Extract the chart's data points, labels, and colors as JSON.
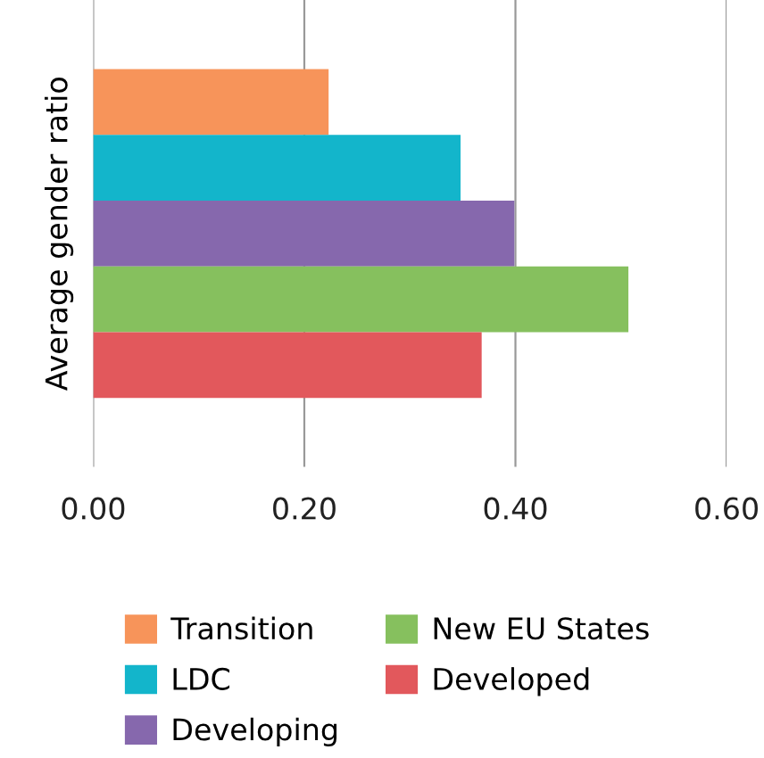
{
  "chart_data": {
    "type": "bar",
    "orientation": "horizontal",
    "ylabel": "Average gender ratio",
    "categories": [
      null
    ],
    "series": [
      {
        "name": "Transition",
        "color": "#f7945a",
        "values": [
          0.223
        ]
      },
      {
        "name": "LDC",
        "color": "#13b5cb",
        "values": [
          0.348
        ]
      },
      {
        "name": "Developing",
        "color": "#8668ad",
        "values": [
          0.399
        ]
      },
      {
        "name": "New EU States",
        "color": "#86c05e",
        "values": [
          0.507
        ]
      },
      {
        "name": "Developed",
        "color": "#e2585c",
        "values": [
          0.368
        ]
      }
    ],
    "xlim": [
      0,
      0.6
    ],
    "xticks": [
      {
        "value": 0,
        "label": "0.00"
      },
      {
        "value": 0.2,
        "label": "0.20"
      },
      {
        "value": 0.4,
        "label": "0.40"
      },
      {
        "value": 0.6,
        "label": "0.60"
      }
    ],
    "grid": "x",
    "legend": "bottom"
  }
}
